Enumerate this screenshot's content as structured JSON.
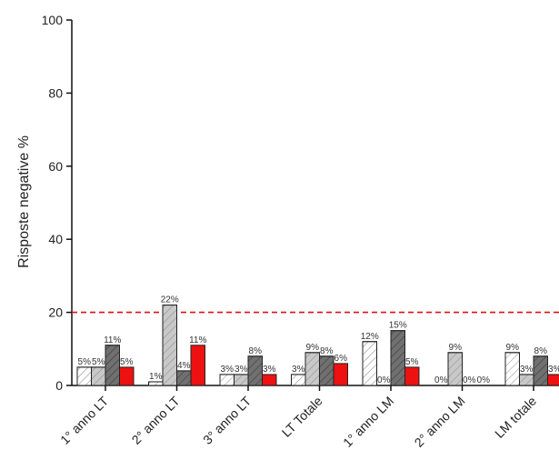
{
  "chart_data": {
    "type": "bar",
    "title": "",
    "xlabel": "",
    "ylabel": "Risposte negative %",
    "ylim": [
      0,
      100
    ],
    "yticks": [
      0,
      20,
      40,
      60,
      80,
      100
    ],
    "categories": [
      "1° anno LT",
      "2° anno LT",
      "3° anno LT",
      "LT Totale",
      "1° anno LM",
      "2° anno LM",
      "LM totale"
    ],
    "series": [
      {
        "fill": "#ffffff",
        "pattern": "diag-light",
        "values": [
          5,
          1,
          3,
          3,
          12,
          0,
          9
        ],
        "labels": [
          "5%",
          "1%",
          "3%",
          "3%",
          "12%",
          "0%",
          "9%"
        ]
      },
      {
        "fill": "#c8c8c8",
        "pattern": "diag-light",
        "values": [
          5,
          22,
          3,
          9,
          0,
          9,
          3
        ],
        "labels": [
          "5%",
          "22%",
          "3%",
          "9%",
          "0%",
          "9%",
          "3%"
        ]
      },
      {
        "fill": "#707070",
        "pattern": "diag-dark",
        "values": [
          11,
          4,
          8,
          8,
          15,
          0,
          8
        ],
        "labels": [
          "11%",
          "4%",
          "8%",
          "8%",
          "15%",
          "0%",
          "8%"
        ]
      },
      {
        "fill": "#ee1111",
        "pattern": "none",
        "values": [
          5,
          11,
          3,
          6,
          5,
          0,
          3
        ],
        "labels": [
          "5%",
          "11%",
          "3%",
          "6%",
          "5%",
          "0%",
          "3%"
        ]
      }
    ],
    "reference_line": {
      "y": 20,
      "color": "#dd1111",
      "style": "dashed"
    },
    "grid": false,
    "legend": "none"
  }
}
